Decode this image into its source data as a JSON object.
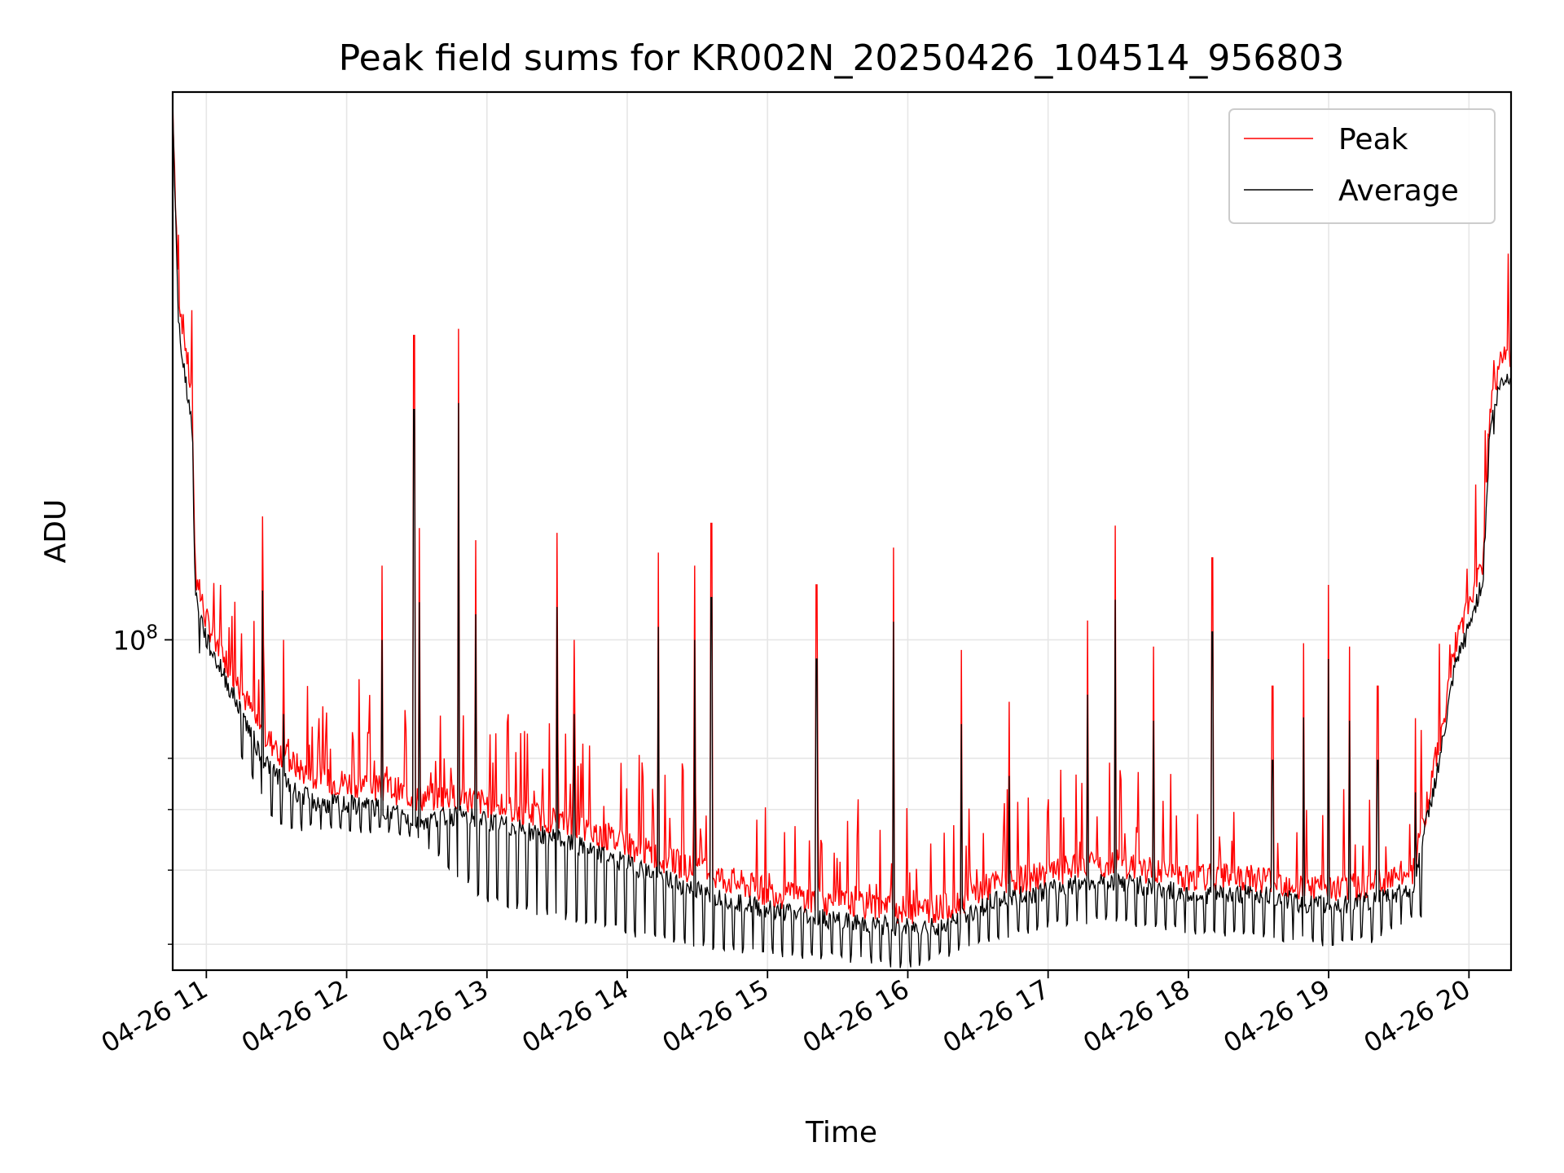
{
  "chart_data": {
    "type": "line",
    "title": "Peak field sums for KR002N_20250426_104514_956803",
    "xlabel": "Time",
    "ylabel": "ADU",
    "yscale": "log",
    "ylim": [
      37000000,
      520000000
    ],
    "y_major_tick_labels": [
      {
        "value": 100000000,
        "base": "10",
        "exp": "8"
      }
    ],
    "y_minor_ticks": [
      40000000,
      50000000,
      60000000,
      70000000
    ],
    "x_range_hours": [
      10.76,
      20.3
    ],
    "x_ticks": [
      {
        "hour": 11,
        "label": "04-26 11"
      },
      {
        "hour": 12,
        "label": "04-26 12"
      },
      {
        "hour": 13,
        "label": "04-26 13"
      },
      {
        "hour": 14,
        "label": "04-26 14"
      },
      {
        "hour": 15,
        "label": "04-26 15"
      },
      {
        "hour": 16,
        "label": "04-26 16"
      },
      {
        "hour": 17,
        "label": "04-26 17"
      },
      {
        "hour": 18,
        "label": "04-26 18"
      },
      {
        "hour": 19,
        "label": "04-26 19"
      },
      {
        "hour": 20,
        "label": "04-26 20"
      }
    ],
    "grid": true,
    "legend_position": "top-right",
    "series": [
      {
        "name": "Peak",
        "color": "#ff0000",
        "baseline": [
          [
            10.76,
            500000000
          ],
          [
            10.8,
            280000000
          ],
          [
            10.85,
            240000000
          ],
          [
            10.9,
            200000000
          ],
          [
            10.92,
            120000000
          ],
          [
            11.0,
            104000000
          ],
          [
            11.2,
            88000000
          ],
          [
            11.4,
            74000000
          ],
          [
            11.6,
            68000000
          ],
          [
            11.8,
            64000000
          ],
          [
            12.0,
            64000000
          ],
          [
            12.3,
            63000000
          ],
          [
            12.5,
            61000000
          ],
          [
            12.8,
            61500000
          ],
          [
            13.0,
            60000000
          ],
          [
            13.5,
            57000000
          ],
          [
            14.0,
            53000000
          ],
          [
            14.5,
            49000000
          ],
          [
            15.0,
            46000000
          ],
          [
            15.5,
            44500000
          ],
          [
            16.0,
            43500000
          ],
          [
            16.3,
            44000000
          ],
          [
            16.6,
            47000000
          ],
          [
            17.0,
            48500000
          ],
          [
            17.3,
            50000000
          ],
          [
            17.6,
            49500000
          ],
          [
            18.0,
            48000000
          ],
          [
            18.5,
            48000000
          ],
          [
            18.9,
            46500000
          ],
          [
            19.1,
            46500000
          ],
          [
            19.3,
            47000000
          ],
          [
            19.6,
            49000000
          ],
          [
            19.7,
            60000000
          ],
          [
            19.8,
            74000000
          ],
          [
            19.9,
            96000000
          ],
          [
            20.0,
            108000000
          ],
          [
            20.1,
            125000000
          ],
          [
            20.15,
            200000000
          ],
          [
            20.22,
            225000000
          ],
          [
            20.3,
            230000000
          ]
        ],
        "spikes": [
          [
            11.4,
            145000000
          ],
          [
            10.95,
            120000000
          ],
          [
            11.1,
            118000000
          ],
          [
            11.55,
            100000000
          ],
          [
            12.25,
            125000000
          ],
          [
            12.48,
            250000000
          ],
          [
            12.52,
            140000000
          ],
          [
            12.8,
            255000000
          ],
          [
            12.92,
            135000000
          ],
          [
            13.5,
            138000000
          ],
          [
            13.62,
            100000000
          ],
          [
            14.22,
            130000000
          ],
          [
            14.48,
            125000000
          ],
          [
            14.6,
            142000000
          ],
          [
            15.35,
            118000000
          ],
          [
            15.9,
            132000000
          ],
          [
            16.38,
            97000000
          ],
          [
            16.72,
            83000000
          ],
          [
            17.28,
            106000000
          ],
          [
            17.48,
            141000000
          ],
          [
            17.75,
            98000000
          ],
          [
            18.17,
            128000000
          ],
          [
            18.6,
            87000000
          ],
          [
            18.82,
            99000000
          ],
          [
            19.0,
            118000000
          ],
          [
            19.15,
            98000000
          ],
          [
            19.35,
            87000000
          ],
          [
            19.62,
            79000000
          ],
          [
            20.18,
            232000000
          ]
        ]
      },
      {
        "name": "Average",
        "color": "#000000",
        "baseline": [
          [
            10.76,
            500000000
          ],
          [
            10.8,
            260000000
          ],
          [
            10.85,
            220000000
          ],
          [
            10.9,
            190000000
          ],
          [
            10.92,
            115000000
          ],
          [
            11.0,
            100000000
          ],
          [
            11.2,
            84000000
          ],
          [
            11.4,
            70000000
          ],
          [
            11.6,
            64000000
          ],
          [
            11.8,
            61000000
          ],
          [
            12.0,
            61000000
          ],
          [
            12.3,
            60000000
          ],
          [
            12.5,
            58000000
          ],
          [
            12.8,
            59000000
          ],
          [
            13.0,
            58000000
          ],
          [
            13.5,
            55000000
          ],
          [
            14.0,
            51000000
          ],
          [
            14.5,
            47000000
          ],
          [
            15.0,
            44500000
          ],
          [
            15.5,
            43000000
          ],
          [
            16.0,
            42000000
          ],
          [
            16.3,
            42500000
          ],
          [
            16.6,
            45500000
          ],
          [
            17.0,
            47000000
          ],
          [
            17.3,
            48500000
          ],
          [
            17.6,
            48000000
          ],
          [
            18.0,
            46500000
          ],
          [
            18.5,
            46500000
          ],
          [
            18.9,
            45000000
          ],
          [
            19.1,
            45000000
          ],
          [
            19.3,
            45500000
          ],
          [
            19.6,
            47500000
          ],
          [
            19.7,
            58000000
          ],
          [
            19.8,
            71000000
          ],
          [
            19.9,
            92000000
          ],
          [
            20.0,
            104000000
          ],
          [
            20.1,
            120000000
          ],
          [
            20.15,
            190000000
          ],
          [
            20.22,
            215000000
          ],
          [
            20.3,
            222000000
          ]
        ],
        "dips": [
          [
            11.0,
            88000000
          ],
          [
            11.5,
            56000000
          ],
          [
            12.0,
            56000000
          ],
          [
            12.5,
            55000000
          ],
          [
            13.0,
            45000000
          ],
          [
            13.5,
            43000000
          ],
          [
            14.0,
            41000000
          ],
          [
            14.5,
            39500000
          ],
          [
            15.0,
            38500000
          ],
          [
            15.5,
            38000000
          ],
          [
            16.0,
            37000000
          ],
          [
            16.5,
            39500000
          ],
          [
            17.0,
            42000000
          ],
          [
            17.5,
            42500000
          ],
          [
            18.0,
            41000000
          ],
          [
            18.5,
            40500000
          ],
          [
            19.0,
            39500000
          ],
          [
            19.3,
            40000000
          ],
          [
            19.6,
            43000000
          ]
        ]
      }
    ]
  }
}
